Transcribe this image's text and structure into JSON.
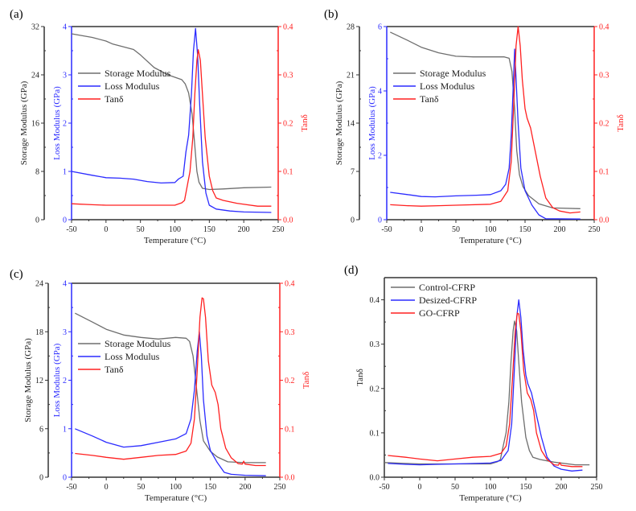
{
  "colors": {
    "storage": "#6e6e6e",
    "loss": "#2b2bff",
    "tan": "#ff2020",
    "control": "#6e6e6e",
    "desized": "#2b2bff",
    "go": "#ff2020",
    "axis": "#333333"
  },
  "chart_data": [
    {
      "panel": "(a)",
      "type": "line",
      "xlabel": "Temperature (°C)",
      "xlim": [
        -50,
        250
      ],
      "xticks": [
        -50,
        0,
        50,
        100,
        150,
        200,
        250
      ],
      "axes": {
        "storage": {
          "label": "Storage Modulus (GPa)",
          "lim": [
            0,
            32
          ],
          "ticks": [
            0,
            8,
            16,
            24,
            32
          ]
        },
        "loss": {
          "label": "Loss Modulus (GPa)",
          "lim": [
            0,
            4
          ],
          "ticks": [
            0,
            1,
            2,
            3,
            4
          ]
        },
        "tan": {
          "label": "Tanδ",
          "lim": [
            0,
            0.4
          ],
          "ticks": [
            "0.0",
            "0.1",
            "0.2",
            "0.3",
            "0.4"
          ]
        }
      },
      "legend": [
        "Storage Modulus",
        "Loss Modulus",
        "Tanδ"
      ],
      "series": [
        {
          "name": "Storage Modulus",
          "axis": "storage",
          "x": [
            -50,
            -20,
            0,
            10,
            20,
            40,
            50,
            70,
            90,
            110,
            115,
            120,
            125,
            128,
            132,
            135,
            140,
            150,
            170,
            200,
            240
          ],
          "y": [
            30.8,
            30.2,
            29.6,
            29.1,
            28.8,
            28.2,
            27.3,
            25.2,
            24.0,
            23.2,
            22.5,
            21.0,
            17.5,
            13.5,
            8.0,
            6.2,
            5.2,
            5.0,
            5.1,
            5.3,
            5.4
          ]
        },
        {
          "name": "Loss Modulus",
          "axis": "loss",
          "x": [
            -50,
            -20,
            0,
            20,
            40,
            60,
            80,
            100,
            105,
            112,
            116,
            120,
            124,
            127,
            130,
            133,
            136,
            140,
            145,
            150,
            160,
            180,
            200,
            240
          ],
          "y": [
            1.0,
            0.92,
            0.87,
            0.86,
            0.84,
            0.79,
            0.76,
            0.77,
            0.84,
            0.9,
            1.4,
            1.75,
            2.6,
            3.5,
            3.96,
            3.4,
            2.4,
            1.2,
            0.55,
            0.3,
            0.22,
            0.18,
            0.16,
            0.15
          ]
        },
        {
          "name": "Tanδ",
          "axis": "tan",
          "x": [
            -50,
            -20,
            0,
            50,
            100,
            110,
            114,
            118,
            122,
            126,
            129,
            132,
            134,
            137,
            140,
            144,
            150,
            155,
            160,
            170,
            190,
            220,
            240
          ],
          "y": [
            0.033,
            0.031,
            0.03,
            0.03,
            0.03,
            0.035,
            0.04,
            0.07,
            0.1,
            0.17,
            0.26,
            0.33,
            0.352,
            0.33,
            0.26,
            0.17,
            0.09,
            0.06,
            0.045,
            0.04,
            0.034,
            0.028,
            0.028
          ]
        }
      ]
    },
    {
      "panel": "(b)",
      "type": "line",
      "xlabel": "Temperature (°C)",
      "xlim": [
        -50,
        250
      ],
      "xticks": [
        -50,
        0,
        50,
        100,
        150,
        200,
        250
      ],
      "axes": {
        "storage": {
          "label": "Storage Modulus (GPa)",
          "lim": [
            0,
            28
          ],
          "ticks": [
            0,
            7,
            14,
            21,
            28
          ]
        },
        "loss": {
          "label": "Loss Modulus (GPa)",
          "lim": [
            0,
            6
          ],
          "ticks": [
            0,
            2,
            4,
            6
          ]
        },
        "tan": {
          "label": "Tanδ",
          "lim": [
            0,
            0.4
          ],
          "ticks": [
            "0.0",
            "0.1",
            "0.2",
            "0.3",
            "0.4"
          ]
        }
      },
      "legend": [
        "Storage Modulus",
        "Loss Modulus",
        "Tanδ"
      ],
      "series": [
        {
          "name": "Storage Modulus",
          "axis": "storage",
          "x": [
            -45,
            -20,
            0,
            25,
            50,
            75,
            100,
            120,
            127,
            131,
            135,
            138,
            142,
            147,
            155,
            170,
            190,
            230
          ],
          "y": [
            27.2,
            26.0,
            25.0,
            24.2,
            23.7,
            23.6,
            23.6,
            23.6,
            23.4,
            21.5,
            16,
            10,
            6.5,
            4.8,
            3.5,
            2.3,
            1.7,
            1.6
          ]
        },
        {
          "name": "Loss Modulus",
          "axis": "loss",
          "x": [
            -45,
            -20,
            0,
            20,
            50,
            80,
            100,
            115,
            122,
            127,
            130,
            133,
            135,
            137,
            140,
            144,
            150,
            160,
            170,
            180,
            230
          ],
          "y": [
            0.85,
            0.78,
            0.72,
            0.71,
            0.74,
            0.76,
            0.78,
            0.9,
            1.1,
            1.6,
            2.6,
            4.2,
            5.3,
            4.4,
            3.0,
            1.6,
            0.9,
            0.45,
            0.15,
            0.03,
            0.02
          ]
        },
        {
          "name": "Tanδ",
          "axis": "tan",
          "x": [
            -45,
            -20,
            0,
            25,
            50,
            100,
            115,
            125,
            130,
            134,
            137,
            140,
            143,
            146,
            150,
            153,
            158,
            165,
            172,
            180,
            190,
            200,
            215,
            230
          ],
          "y": [
            0.031,
            0.029,
            0.028,
            0.029,
            0.03,
            0.032,
            0.038,
            0.06,
            0.12,
            0.25,
            0.36,
            0.4,
            0.36,
            0.29,
            0.23,
            0.21,
            0.19,
            0.14,
            0.09,
            0.045,
            0.025,
            0.018,
            0.014,
            0.016
          ]
        }
      ]
    },
    {
      "panel": "(c)",
      "type": "line",
      "xlabel": "Temperature (°C)",
      "xlim": [
        -50,
        250
      ],
      "xticks": [
        -50,
        0,
        50,
        100,
        150,
        200,
        250
      ],
      "axes": {
        "storage": {
          "label": "Storage Modulus (GPa)",
          "lim": [
            0,
            24
          ],
          "ticks": [
            0,
            6,
            12,
            18,
            24
          ]
        },
        "loss": {
          "label": "Loss Modulus (GPa)",
          "lim": [
            0,
            4
          ],
          "ticks": [
            0,
            1,
            2,
            3,
            4
          ]
        },
        "tan": {
          "label": "Tanδ",
          "lim": [
            0,
            0.4
          ],
          "ticks": [
            "0.0",
            "0.1",
            "0.2",
            "0.3",
            "0.4"
          ]
        }
      },
      "legend": [
        "Storage Modulus",
        "Loss Modulus",
        "Tanδ"
      ],
      "series": [
        {
          "name": "Storage Modulus",
          "axis": "storage",
          "x": [
            -45,
            -20,
            0,
            25,
            50,
            75,
            100,
            115,
            120,
            125,
            130,
            135,
            140,
            150,
            160,
            175,
            200,
            230
          ],
          "y": [
            20.3,
            19.2,
            18.3,
            17.6,
            17.3,
            17.1,
            17.3,
            17.2,
            16.8,
            15,
            11,
            7,
            4.5,
            3.2,
            2.5,
            1.9,
            1.8,
            1.8
          ]
        },
        {
          "name": "Loss Modulus",
          "axis": "loss",
          "x": [
            -45,
            -20,
            0,
            25,
            50,
            75,
            100,
            115,
            122,
            127,
            131,
            134,
            137,
            140,
            145,
            150,
            160,
            170,
            180,
            200,
            230
          ],
          "y": [
            1.0,
            0.85,
            0.72,
            0.62,
            0.65,
            0.72,
            0.79,
            0.9,
            1.2,
            1.8,
            2.6,
            3.0,
            2.5,
            1.6,
            0.85,
            0.55,
            0.3,
            0.1,
            0.06,
            0.04,
            0.03
          ]
        },
        {
          "name": "Tanδ",
          "axis": "tan",
          "x": [
            -45,
            -20,
            0,
            25,
            50,
            75,
            100,
            115,
            122,
            127,
            131,
            135,
            138,
            140,
            143,
            147,
            152,
            157,
            161,
            165,
            172,
            180,
            190,
            196,
            198,
            200,
            215,
            230
          ],
          "y": [
            0.049,
            0.045,
            0.041,
            0.037,
            0.041,
            0.045,
            0.047,
            0.054,
            0.07,
            0.12,
            0.22,
            0.33,
            0.37,
            0.368,
            0.33,
            0.24,
            0.19,
            0.175,
            0.15,
            0.1,
            0.06,
            0.04,
            0.028,
            0.027,
            0.033,
            0.027,
            0.024,
            0.024
          ]
        }
      ]
    },
    {
      "panel": "(d)",
      "type": "line",
      "xlabel": "Temperature (°C)",
      "ylabel": "Tanδ",
      "xlim": [
        -50,
        250
      ],
      "ylim": [
        0,
        0.45
      ],
      "xticks": [
        -50,
        0,
        50,
        100,
        150,
        200,
        250
      ],
      "yticks": [
        "0.0",
        "0.1",
        "0.2",
        "0.3",
        "0.4"
      ],
      "legend": [
        "Control-CFRP",
        "Desized-CFRP",
        "GO-CFRP"
      ],
      "series": [
        {
          "name": "Control-CFRP",
          "color_key": "control",
          "x": [
            -50,
            -20,
            0,
            50,
            100,
            110,
            114,
            118,
            122,
            126,
            129,
            132,
            134,
            137,
            140,
            144,
            150,
            155,
            160,
            170,
            190,
            220,
            240
          ],
          "y": [
            0.033,
            0.031,
            0.03,
            0.03,
            0.03,
            0.035,
            0.04,
            0.07,
            0.1,
            0.17,
            0.26,
            0.33,
            0.352,
            0.33,
            0.26,
            0.17,
            0.09,
            0.06,
            0.045,
            0.04,
            0.034,
            0.028,
            0.028
          ]
        },
        {
          "name": "Desized-CFRP",
          "color_key": "desized",
          "x": [
            -45,
            -20,
            0,
            25,
            50,
            100,
            115,
            125,
            130,
            134,
            137,
            140,
            143,
            146,
            150,
            153,
            158,
            165,
            172,
            180,
            190,
            200,
            215,
            230
          ],
          "y": [
            0.031,
            0.029,
            0.028,
            0.029,
            0.03,
            0.032,
            0.038,
            0.06,
            0.12,
            0.25,
            0.36,
            0.4,
            0.36,
            0.29,
            0.23,
            0.21,
            0.19,
            0.14,
            0.09,
            0.045,
            0.025,
            0.018,
            0.014,
            0.016
          ]
        },
        {
          "name": "GO-CFRP",
          "color_key": "go",
          "x": [
            -45,
            -20,
            0,
            25,
            50,
            75,
            100,
            115,
            122,
            127,
            131,
            135,
            138,
            140,
            143,
            147,
            152,
            157,
            161,
            165,
            172,
            180,
            190,
            196,
            198,
            200,
            215,
            230
          ],
          "y": [
            0.049,
            0.045,
            0.041,
            0.037,
            0.041,
            0.045,
            0.047,
            0.054,
            0.07,
            0.12,
            0.22,
            0.33,
            0.37,
            0.368,
            0.33,
            0.24,
            0.19,
            0.175,
            0.15,
            0.1,
            0.06,
            0.04,
            0.028,
            0.027,
            0.033,
            0.027,
            0.024,
            0.024
          ]
        }
      ]
    }
  ]
}
